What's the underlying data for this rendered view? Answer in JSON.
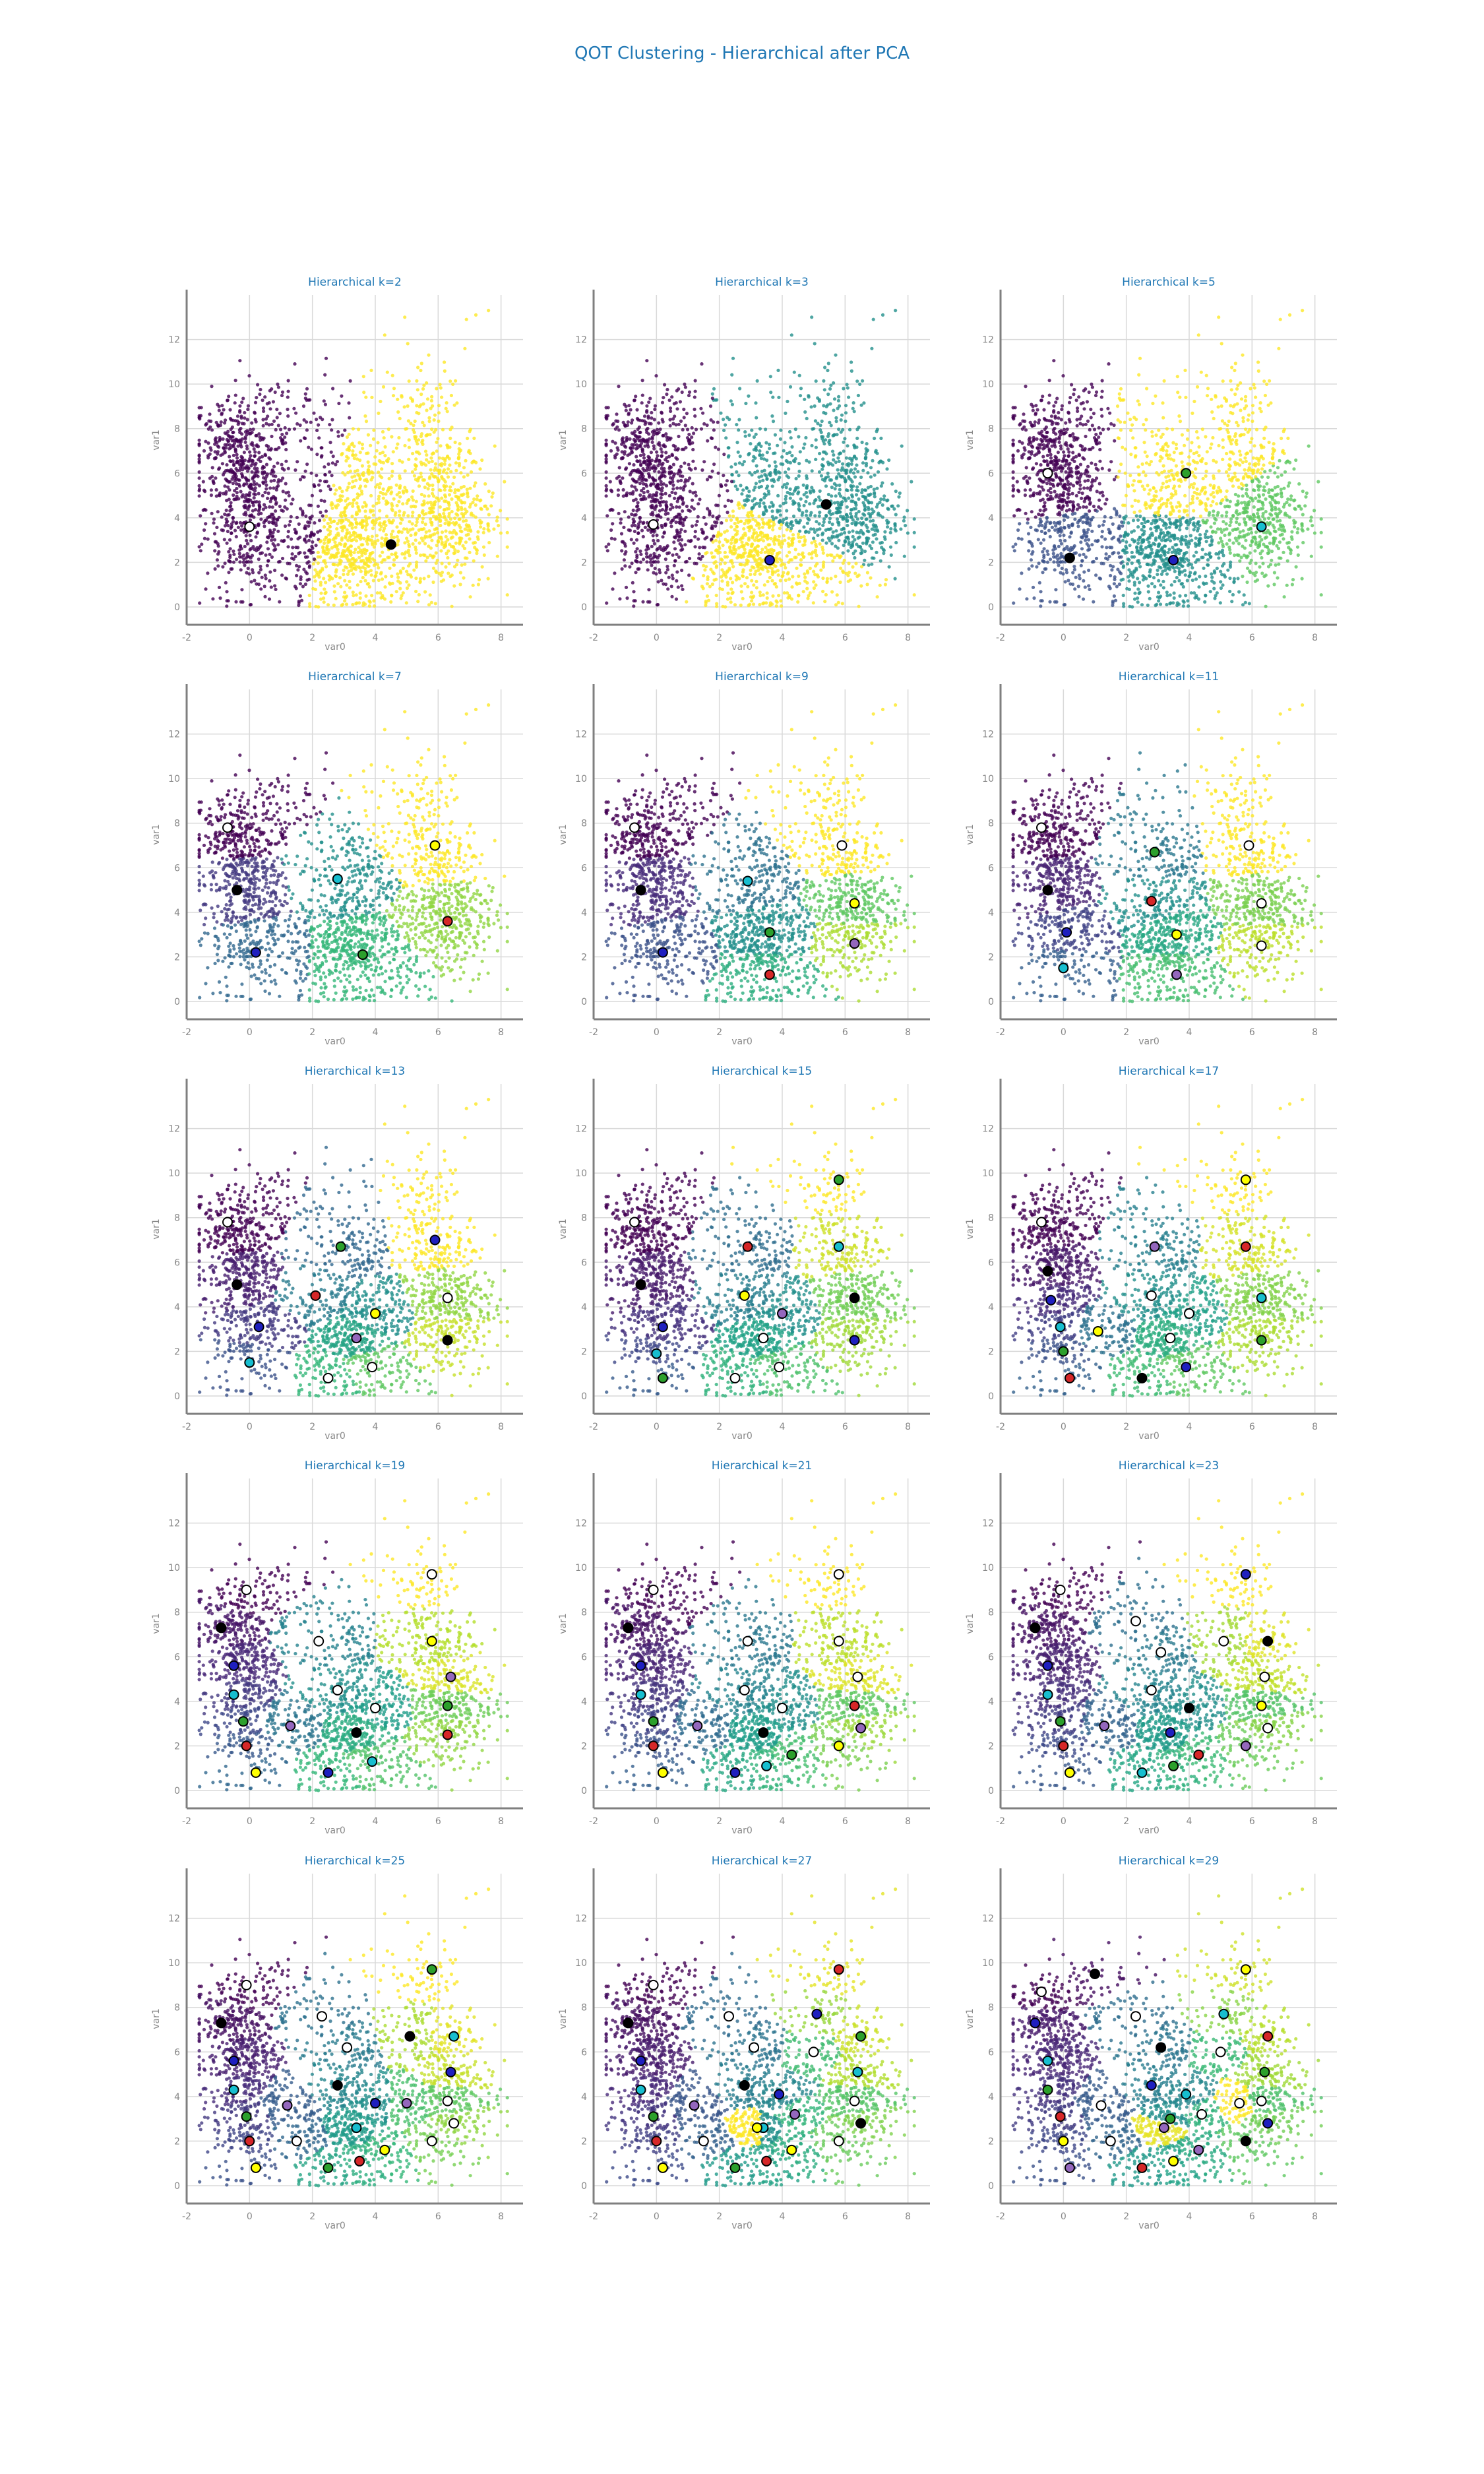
{
  "figure": {
    "title": "QOT Clustering - Hierarchical after PCA"
  },
  "colors": {
    "title": "#1f77b4",
    "grid": "#d9d9d9",
    "axis": "#7f7f7f",
    "tick_label": "#888888"
  },
  "chart_data": [
    {
      "type": "scatter",
      "title": "Hierarchical k=2",
      "k": 2,
      "xlabel": "var0",
      "ylabel": "var1",
      "xlim": [
        -2,
        8.7
      ],
      "ylim": [
        -0.8,
        14
      ],
      "xticks": [
        -2,
        0,
        2,
        4,
        6,
        8
      ],
      "yticks": [
        0,
        2,
        4,
        6,
        8,
        10,
        12
      ],
      "grid": true,
      "centers": [
        [
          0.0,
          3.6
        ],
        [
          4.5,
          2.8
        ]
      ]
    },
    {
      "type": "scatter",
      "title": "Hierarchical k=3",
      "k": 3,
      "xlabel": "var0",
      "ylabel": "var1",
      "xlim": [
        -2,
        8.7
      ],
      "ylim": [
        -0.8,
        14
      ],
      "xticks": [
        -2,
        0,
        2,
        4,
        6,
        8
      ],
      "yticks": [
        0,
        2,
        4,
        6,
        8,
        10,
        12
      ],
      "grid": true,
      "centers": [
        [
          -0.1,
          3.7
        ],
        [
          5.4,
          4.6
        ],
        [
          3.6,
          2.1
        ]
      ]
    },
    {
      "type": "scatter",
      "title": "Hierarchical k=5",
      "k": 5,
      "xlabel": "var0",
      "ylabel": "var1",
      "xlim": [
        -2,
        8.7
      ],
      "ylim": [
        -0.8,
        14
      ],
      "xticks": [
        -2,
        0,
        2,
        4,
        6,
        8
      ],
      "yticks": [
        0,
        2,
        4,
        6,
        8,
        10,
        12
      ],
      "grid": true,
      "centers": [
        [
          -0.5,
          6.0
        ],
        [
          0.2,
          2.2
        ],
        [
          3.5,
          2.1
        ],
        [
          6.3,
          3.6
        ],
        [
          3.9,
          6.0
        ]
      ]
    },
    {
      "type": "scatter",
      "title": "Hierarchical k=7",
      "k": 7,
      "xlabel": "var0",
      "ylabel": "var1",
      "xlim": [
        -2,
        8.7
      ],
      "ylim": [
        -0.8,
        14
      ],
      "xticks": [
        -2,
        0,
        2,
        4,
        6,
        8
      ],
      "yticks": [
        0,
        2,
        4,
        6,
        8,
        10,
        12
      ],
      "grid": true,
      "centers": [
        [
          -0.7,
          7.8
        ],
        [
          -0.4,
          5.0
        ],
        [
          0.2,
          2.2
        ],
        [
          2.8,
          5.5
        ],
        [
          3.6,
          2.1
        ],
        [
          6.3,
          3.6
        ],
        [
          5.9,
          7.0
        ]
      ]
    },
    {
      "type": "scatter",
      "title": "Hierarchical k=9",
      "k": 9,
      "xlabel": "var0",
      "ylabel": "var1",
      "xlim": [
        -2,
        8.7
      ],
      "ylim": [
        -0.8,
        14
      ],
      "xticks": [
        -2,
        0,
        2,
        4,
        6,
        8
      ],
      "yticks": [
        0,
        2,
        4,
        6,
        8,
        10,
        12
      ],
      "grid": true,
      "centers": [
        [
          -0.7,
          7.8
        ],
        [
          -0.5,
          5.0
        ],
        [
          0.2,
          2.2
        ],
        [
          2.9,
          5.4
        ],
        [
          3.6,
          3.1
        ],
        [
          3.6,
          1.2
        ],
        [
          6.3,
          4.4
        ],
        [
          6.3,
          2.6
        ],
        [
          5.9,
          7.0
        ]
      ]
    },
    {
      "type": "scatter",
      "title": "Hierarchical k=11",
      "k": 11,
      "xlabel": "var0",
      "ylabel": "var1",
      "xlim": [
        -2,
        8.7
      ],
      "ylim": [
        -0.8,
        14
      ],
      "xticks": [
        -2,
        0,
        2,
        4,
        6,
        8
      ],
      "yticks": [
        0,
        2,
        4,
        6,
        8,
        10,
        12
      ],
      "grid": true,
      "centers": [
        [
          -0.7,
          7.8
        ],
        [
          -0.5,
          5.0
        ],
        [
          0.1,
          3.1
        ],
        [
          0.0,
          1.5
        ],
        [
          2.9,
          6.7
        ],
        [
          2.8,
          4.5
        ],
        [
          3.6,
          3.0
        ],
        [
          3.6,
          1.2
        ],
        [
          6.3,
          4.4
        ],
        [
          6.3,
          2.5
        ],
        [
          5.9,
          7.0
        ]
      ]
    },
    {
      "type": "scatter",
      "title": "Hierarchical k=13",
      "k": 13,
      "xlabel": "var0",
      "ylabel": "var1",
      "xlim": [
        -2,
        8.7
      ],
      "ylim": [
        -0.8,
        14
      ],
      "xticks": [
        -2,
        0,
        2,
        4,
        6,
        8
      ],
      "yticks": [
        0,
        2,
        4,
        6,
        8,
        10,
        12
      ],
      "grid": true,
      "centers": [
        [
          -0.7,
          7.8
        ],
        [
          -0.4,
          5.0
        ],
        [
          0.3,
          3.1
        ],
        [
          0.0,
          1.5
        ],
        [
          2.9,
          6.7
        ],
        [
          2.1,
          4.5
        ],
        [
          4.0,
          3.7
        ],
        [
          3.4,
          2.6
        ],
        [
          2.5,
          0.8
        ],
        [
          3.9,
          1.3
        ],
        [
          6.3,
          4.4
        ],
        [
          6.3,
          2.5
        ],
        [
          5.9,
          7.0
        ]
      ]
    },
    {
      "type": "scatter",
      "title": "Hierarchical k=15",
      "k": 15,
      "xlabel": "var0",
      "ylabel": "var1",
      "xlim": [
        -2,
        8.7
      ],
      "ylim": [
        -0.8,
        14
      ],
      "xticks": [
        -2,
        0,
        2,
        4,
        6,
        8
      ],
      "yticks": [
        0,
        2,
        4,
        6,
        8,
        10,
        12
      ],
      "grid": true,
      "centers": [
        [
          -0.7,
          7.8
        ],
        [
          -0.5,
          5.0
        ],
        [
          0.2,
          3.1
        ],
        [
          0.0,
          1.9
        ],
        [
          0.2,
          0.8
        ],
        [
          2.9,
          6.7
        ],
        [
          2.8,
          4.5
        ],
        [
          4.0,
          3.7
        ],
        [
          3.4,
          2.6
        ],
        [
          2.5,
          0.8
        ],
        [
          3.9,
          1.3
        ],
        [
          6.3,
          4.4
        ],
        [
          6.3,
          2.5
        ],
        [
          5.8,
          6.7
        ],
        [
          5.8,
          9.7
        ]
      ]
    },
    {
      "type": "scatter",
      "title": "Hierarchical k=17",
      "k": 17,
      "xlabel": "var0",
      "ylabel": "var1",
      "xlim": [
        -2,
        8.7
      ],
      "ylim": [
        -0.8,
        14
      ],
      "xticks": [
        -2,
        0,
        2,
        4,
        6,
        8
      ],
      "yticks": [
        0,
        2,
        4,
        6,
        8,
        10,
        12
      ],
      "grid": true,
      "centers": [
        [
          -0.7,
          7.8
        ],
        [
          -0.5,
          5.6
        ],
        [
          -0.4,
          4.3
        ],
        [
          -0.1,
          3.1
        ],
        [
          0.0,
          2.0
        ],
        [
          0.2,
          0.8
        ],
        [
          1.1,
          2.9
        ],
        [
          2.9,
          6.7
        ],
        [
          2.8,
          4.5
        ],
        [
          4.0,
          3.7
        ],
        [
          3.4,
          2.6
        ],
        [
          2.5,
          0.8
        ],
        [
          3.9,
          1.3
        ],
        [
          6.3,
          4.4
        ],
        [
          6.3,
          2.5
        ],
        [
          5.8,
          6.7
        ],
        [
          5.8,
          9.7
        ]
      ]
    },
    {
      "type": "scatter",
      "title": "Hierarchical k=19",
      "k": 19,
      "xlabel": "var0",
      "ylabel": "var1",
      "xlim": [
        -2,
        8.7
      ],
      "ylim": [
        -0.8,
        14
      ],
      "xticks": [
        -2,
        0,
        2,
        4,
        6,
        8
      ],
      "yticks": [
        0,
        2,
        4,
        6,
        8,
        10,
        12
      ],
      "grid": true,
      "centers": [
        [
          -0.1,
          9.0
        ],
        [
          -0.9,
          7.3
        ],
        [
          -0.5,
          5.6
        ],
        [
          -0.5,
          4.3
        ],
        [
          -0.2,
          3.1
        ],
        [
          -0.1,
          2.0
        ],
        [
          0.2,
          0.8
        ],
        [
          1.3,
          2.9
        ],
        [
          2.2,
          6.7
        ],
        [
          2.8,
          4.5
        ],
        [
          4.0,
          3.7
        ],
        [
          3.4,
          2.6
        ],
        [
          2.5,
          0.8
        ],
        [
          3.9,
          1.3
        ],
        [
          6.3,
          3.8
        ],
        [
          6.3,
          2.5
        ],
        [
          5.8,
          6.7
        ],
        [
          6.4,
          5.1
        ],
        [
          5.8,
          9.7
        ]
      ]
    },
    {
      "type": "scatter",
      "title": "Hierarchical k=21",
      "k": 21,
      "xlabel": "var0",
      "ylabel": "var1",
      "xlim": [
        -2,
        8.7
      ],
      "ylim": [
        -0.8,
        14
      ],
      "xticks": [
        -2,
        0,
        2,
        4,
        6,
        8
      ],
      "yticks": [
        0,
        2,
        4,
        6,
        8,
        10,
        12
      ],
      "grid": true,
      "centers": [
        [
          -0.1,
          9.0
        ],
        [
          -0.9,
          7.3
        ],
        [
          -0.5,
          5.6
        ],
        [
          -0.5,
          4.3
        ],
        [
          -0.1,
          3.1
        ],
        [
          -0.1,
          2.0
        ],
        [
          0.2,
          0.8
        ],
        [
          1.3,
          2.9
        ],
        [
          2.9,
          6.7
        ],
        [
          2.8,
          4.5
        ],
        [
          4.0,
          3.7
        ],
        [
          3.4,
          2.6
        ],
        [
          2.5,
          0.8
        ],
        [
          3.5,
          1.1
        ],
        [
          4.3,
          1.6
        ],
        [
          6.3,
          3.8
        ],
        [
          5.8,
          2.0
        ],
        [
          6.5,
          2.8
        ],
        [
          5.8,
          6.7
        ],
        [
          6.4,
          5.1
        ],
        [
          5.8,
          9.7
        ]
      ]
    },
    {
      "type": "scatter",
      "title": "Hierarchical k=23",
      "k": 23,
      "xlabel": "var0",
      "ylabel": "var1",
      "xlim": [
        -2,
        8.7
      ],
      "ylim": [
        -0.8,
        14
      ],
      "xticks": [
        -2,
        0,
        2,
        4,
        6,
        8
      ],
      "yticks": [
        0,
        2,
        4,
        6,
        8,
        10,
        12
      ],
      "grid": true,
      "centers": [
        [
          -0.1,
          9.0
        ],
        [
          -0.9,
          7.3
        ],
        [
          -0.5,
          5.6
        ],
        [
          -0.5,
          4.3
        ],
        [
          -0.1,
          3.1
        ],
        [
          0.0,
          2.0
        ],
        [
          0.2,
          0.8
        ],
        [
          1.3,
          2.9
        ],
        [
          2.3,
          7.6
        ],
        [
          3.1,
          6.2
        ],
        [
          2.8,
          4.5
        ],
        [
          4.0,
          3.7
        ],
        [
          3.4,
          2.6
        ],
        [
          2.5,
          0.8
        ],
        [
          3.5,
          1.1
        ],
        [
          4.3,
          1.6
        ],
        [
          6.3,
          3.8
        ],
        [
          5.8,
          2.0
        ],
        [
          6.5,
          2.8
        ],
        [
          5.1,
          6.7
        ],
        [
          6.4,
          5.1
        ],
        [
          6.5,
          6.7
        ],
        [
          5.8,
          9.7
        ]
      ]
    },
    {
      "type": "scatter",
      "title": "Hierarchical k=25",
      "k": 25,
      "xlabel": "var0",
      "ylabel": "var1",
      "xlim": [
        -2,
        8.7
      ],
      "ylim": [
        -0.8,
        14
      ],
      "xticks": [
        -2,
        0,
        2,
        4,
        6,
        8
      ],
      "yticks": [
        0,
        2,
        4,
        6,
        8,
        10,
        12
      ],
      "grid": true,
      "centers": [
        [
          -0.1,
          9.0
        ],
        [
          -0.9,
          7.3
        ],
        [
          -0.5,
          5.6
        ],
        [
          -0.5,
          4.3
        ],
        [
          -0.1,
          3.1
        ],
        [
          0.0,
          2.0
        ],
        [
          0.2,
          0.8
        ],
        [
          1.2,
          3.6
        ],
        [
          1.5,
          2.0
        ],
        [
          2.3,
          7.6
        ],
        [
          3.1,
          6.2
        ],
        [
          2.8,
          4.5
        ],
        [
          4.0,
          3.7
        ],
        [
          3.4,
          2.6
        ],
        [
          2.5,
          0.8
        ],
        [
          3.5,
          1.1
        ],
        [
          4.3,
          1.6
        ],
        [
          5.0,
          3.7
        ],
        [
          6.3,
          3.8
        ],
        [
          5.8,
          2.0
        ],
        [
          6.5,
          2.8
        ],
        [
          5.1,
          6.7
        ],
        [
          6.4,
          5.1
        ],
        [
          6.5,
          6.7
        ],
        [
          5.8,
          9.7
        ]
      ]
    },
    {
      "type": "scatter",
      "title": "Hierarchical k=27",
      "k": 27,
      "xlabel": "var0",
      "ylabel": "var1",
      "xlim": [
        -2,
        8.7
      ],
      "ylim": [
        -0.8,
        14
      ],
      "xticks": [
        -2,
        0,
        2,
        4,
        6,
        8
      ],
      "yticks": [
        0,
        2,
        4,
        6,
        8,
        10,
        12
      ],
      "grid": true,
      "centers": [
        [
          -0.1,
          9.0
        ],
        [
          -0.9,
          7.3
        ],
        [
          -0.5,
          5.6
        ],
        [
          -0.5,
          4.3
        ],
        [
          -0.1,
          3.1
        ],
        [
          0.0,
          2.0
        ],
        [
          0.2,
          0.8
        ],
        [
          1.2,
          3.6
        ],
        [
          1.5,
          2.0
        ],
        [
          2.3,
          7.6
        ],
        [
          3.1,
          6.2
        ],
        [
          2.8,
          4.5
        ],
        [
          3.9,
          4.1
        ],
        [
          3.4,
          2.6
        ],
        [
          2.5,
          0.8
        ],
        [
          3.5,
          1.1
        ],
        [
          4.3,
          1.6
        ],
        [
          4.4,
          3.2
        ],
        [
          5.0,
          6.0
        ],
        [
          6.3,
          3.8
        ],
        [
          5.8,
          2.0
        ],
        [
          6.5,
          2.8
        ],
        [
          5.1,
          7.7
        ],
        [
          6.4,
          5.1
        ],
        [
          6.5,
          6.7
        ],
        [
          5.8,
          9.7
        ],
        [
          3.2,
          2.6
        ]
      ]
    },
    {
      "type": "scatter",
      "title": "Hierarchical k=29",
      "k": 29,
      "xlabel": "var0",
      "ylabel": "var1",
      "xlim": [
        -2,
        8.7
      ],
      "ylim": [
        -0.8,
        14
      ],
      "xticks": [
        -2,
        0,
        2,
        4,
        6,
        8
      ],
      "yticks": [
        0,
        2,
        4,
        6,
        8,
        10,
        12
      ],
      "grid": true,
      "centers": [
        [
          -0.7,
          8.7
        ],
        [
          1.0,
          9.5
        ],
        [
          -0.9,
          7.3
        ],
        [
          -0.5,
          5.6
        ],
        [
          -0.5,
          4.3
        ],
        [
          -0.1,
          3.1
        ],
        [
          0.0,
          2.0
        ],
        [
          0.2,
          0.8
        ],
        [
          1.2,
          3.6
        ],
        [
          1.5,
          2.0
        ],
        [
          2.3,
          7.6
        ],
        [
          3.1,
          6.2
        ],
        [
          2.8,
          4.5
        ],
        [
          3.9,
          4.1
        ],
        [
          3.4,
          3.0
        ],
        [
          2.5,
          0.8
        ],
        [
          3.5,
          1.1
        ],
        [
          4.3,
          1.6
        ],
        [
          4.4,
          3.2
        ],
        [
          5.0,
          6.0
        ],
        [
          6.3,
          3.8
        ],
        [
          5.8,
          2.0
        ],
        [
          6.5,
          2.8
        ],
        [
          5.1,
          7.7
        ],
        [
          6.4,
          5.1
        ],
        [
          6.5,
          6.7
        ],
        [
          5.8,
          9.7
        ],
        [
          3.2,
          2.6
        ],
        [
          5.6,
          3.7
        ]
      ]
    }
  ]
}
